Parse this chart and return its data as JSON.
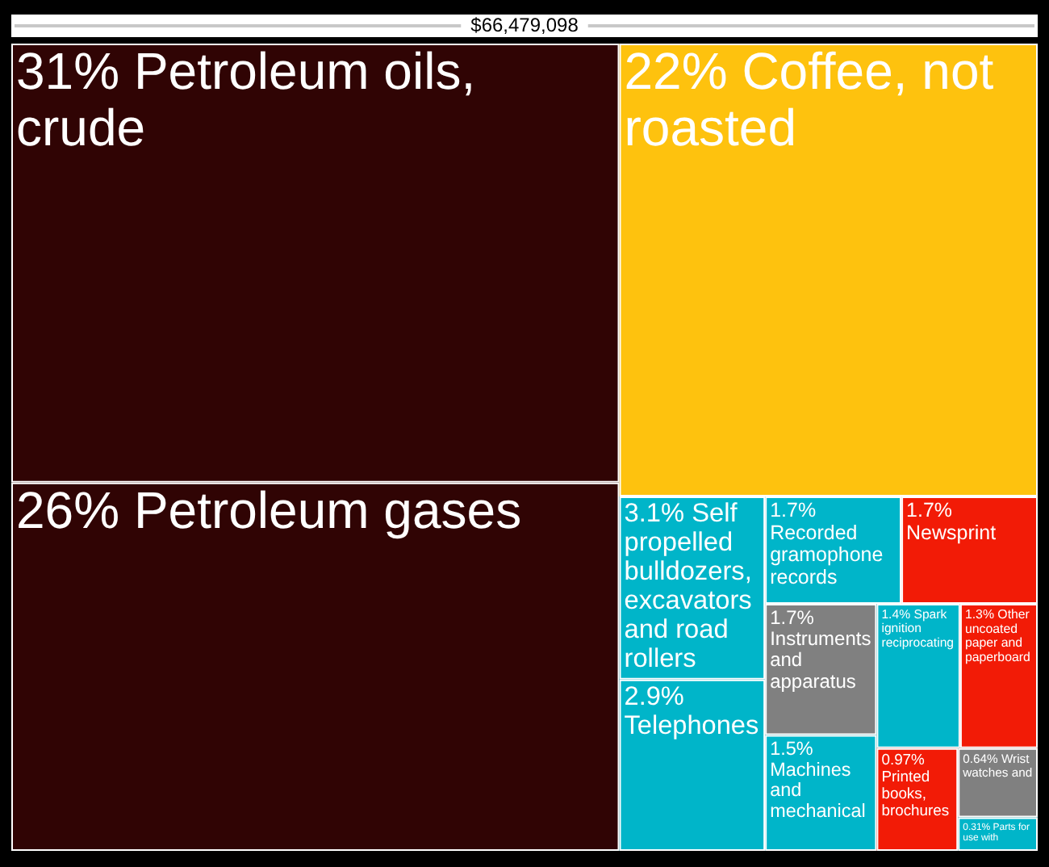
{
  "chart_data": {
    "type": "other",
    "title": "$66,479,098",
    "categories": [
      "Petroleum oils, crude",
      "Petroleum gases",
      "Coffee, not roasted",
      "Self propelled bulldozers, excavators and road rollers",
      "Telephones",
      "Recorded gramophone records",
      "Newsprint",
      "Instruments and apparatus",
      "Machines and mechanical",
      "Spark ignition reciprocating",
      "Other uncoated paper and paperboard",
      "Printed books, brochures",
      "Wrist watches and",
      "Parts for use with"
    ],
    "values": [
      31,
      26,
      22,
      3.1,
      2.9,
      1.7,
      1.7,
      1.7,
      1.5,
      1.4,
      1.3,
      0.97,
      0.64,
      0.31
    ],
    "value_labels": [
      "31%",
      "26%",
      "22%",
      "3.1%",
      "2.9%",
      "1.7%",
      "1.7%",
      "1.7%",
      "1.5%",
      "1.4%",
      "1.3%",
      "0.97%",
      "0.64%",
      "0.31%"
    ],
    "colors": [
      "#300404",
      "#300404",
      "#fec20e",
      "#00b5c9",
      "#00b5c9",
      "#00b5c9",
      "#f21b06",
      "#808080",
      "#00b5c9",
      "#00b5c9",
      "#f21b06",
      "#f21b06",
      "#808080",
      "#00b5c9"
    ]
  }
}
